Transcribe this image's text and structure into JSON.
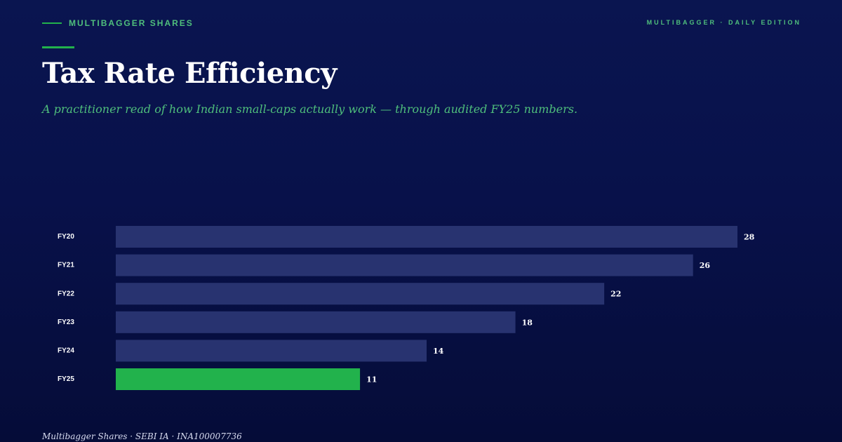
{
  "header": {
    "brand": "MULTIBAGGER SHARES",
    "edition": "MULTIBAGGER · DAILY EDITION"
  },
  "title": "Tax Rate Efficiency",
  "subtitle": "A practitioner read of how Indian small-caps actually work — through audited FY25 numbers.",
  "footer": "Multibagger Shares · SEBI IA · INA100007736",
  "colors": {
    "background": "#08114a",
    "bar": "#283370",
    "highlight_bar": "#22b24c",
    "accent": "#4fbf7c"
  },
  "chart_data": {
    "type": "bar",
    "orientation": "horizontal",
    "categories": [
      "FY20",
      "FY21",
      "FY22",
      "FY23",
      "FY24",
      "FY25"
    ],
    "values": [
      28,
      26,
      22,
      18,
      14,
      11
    ],
    "highlight": "FY25",
    "xlim": [
      0,
      28
    ],
    "grid": false,
    "legend": "none"
  }
}
